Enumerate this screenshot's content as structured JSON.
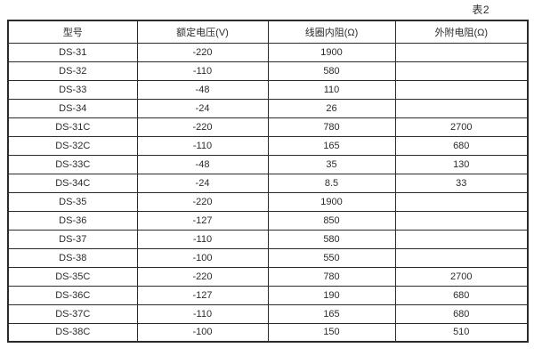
{
  "caption": "表2",
  "table": {
    "headers": [
      "型号",
      "额定电压(V)",
      "线圈内阻(Ω)",
      "外附电阻(Ω)"
    ],
    "rows": [
      [
        "DS-31",
        "-220",
        "1900",
        ""
      ],
      [
        "DS-32",
        "-110",
        "580",
        ""
      ],
      [
        "DS-33",
        "-48",
        "110",
        ""
      ],
      [
        "DS-34",
        "-24",
        "26",
        ""
      ],
      [
        "DS-31C",
        "-220",
        "780",
        "2700"
      ],
      [
        "DS-32C",
        "-110",
        "165",
        "680"
      ],
      [
        "DS-33C",
        "-48",
        "35",
        "130"
      ],
      [
        "DS-34C",
        "-24",
        "8.5",
        "33"
      ],
      [
        "DS-35",
        "-220",
        "1900",
        ""
      ],
      [
        "DS-36",
        "-127",
        "850",
        ""
      ],
      [
        "DS-37",
        "-110",
        "580",
        ""
      ],
      [
        "DS-38",
        "-100",
        "550",
        ""
      ],
      [
        "DS-35C",
        "-220",
        "780",
        "2700"
      ],
      [
        "DS-36C",
        "-127",
        "190",
        "680"
      ],
      [
        "DS-37C",
        "-110",
        "165",
        "680"
      ],
      [
        "DS-38C",
        "-100",
        "150",
        "510"
      ]
    ]
  }
}
